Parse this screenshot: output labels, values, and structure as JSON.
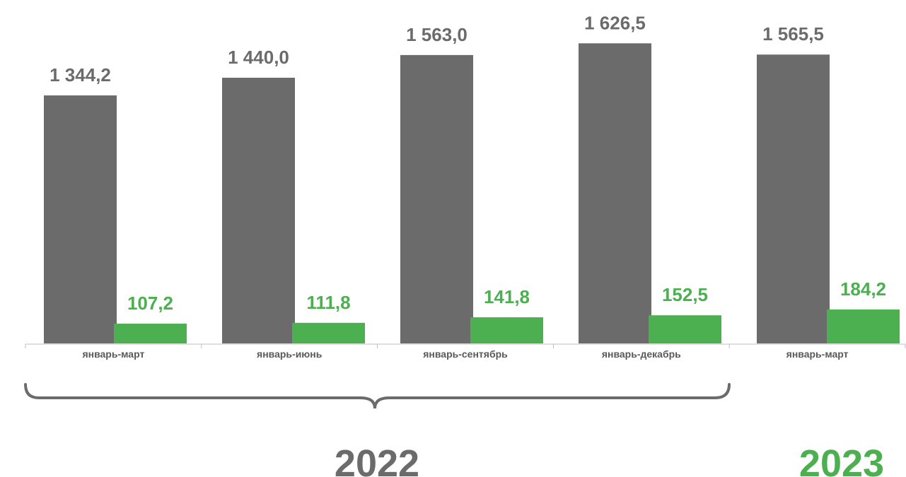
{
  "chart_data": {
    "type": "bar",
    "categories": [
      "январь-март",
      "январь-июнь",
      "январь-сентябрь",
      "январь-декабрь",
      "январь-март"
    ],
    "series": [
      {
        "color": "#6b6b6b",
        "values": [
          1344.2,
          1440.0,
          1563.0,
          1626.5,
          1565.5
        ],
        "labels": [
          "1 344,2",
          "1 440,0",
          "1 563,0",
          "1 626,5",
          "1 565,5"
        ]
      },
      {
        "color": "#4caf50",
        "values": [
          107.2,
          111.8,
          141.8,
          152.5,
          184.2
        ],
        "labels": [
          "107,2",
          "111,8",
          "141,8",
          "152,5",
          "184,2"
        ]
      }
    ],
    "ylim": [
      0,
      1800
    ],
    "grid": false,
    "legend": "none",
    "year_groups": [
      {
        "label": "2022",
        "color": "#6b6b6b"
      },
      {
        "label": "2023",
        "color": "#4caf50"
      }
    ]
  }
}
